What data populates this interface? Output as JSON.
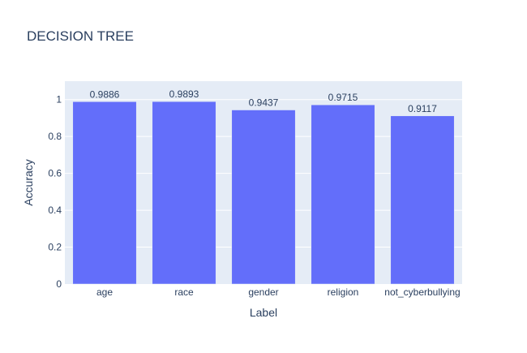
{
  "chart_data": {
    "type": "bar",
    "title": "DECISION TREE",
    "xlabel": "Label",
    "ylabel": "Accuracy",
    "categories": [
      "age",
      "race",
      "gender",
      "religion",
      "not_cyberbullying"
    ],
    "values": [
      0.9886,
      0.9893,
      0.9437,
      0.9715,
      0.9117
    ],
    "value_labels": [
      "0.9886",
      "0.9893",
      "0.9437",
      "0.9715",
      "0.9117"
    ],
    "ylim": [
      0,
      1.1
    ],
    "yticks": [
      0,
      0.2,
      0.4,
      0.6,
      0.8,
      1
    ],
    "ytick_labels": [
      "0",
      "0.2",
      "0.4",
      "0.6",
      "0.8",
      "1"
    ],
    "grid": true,
    "colors": {
      "bar": "#636efa",
      "plot_bg": "#e5ecf6",
      "grid": "#ffffff",
      "text": "#2a3f5f"
    }
  }
}
